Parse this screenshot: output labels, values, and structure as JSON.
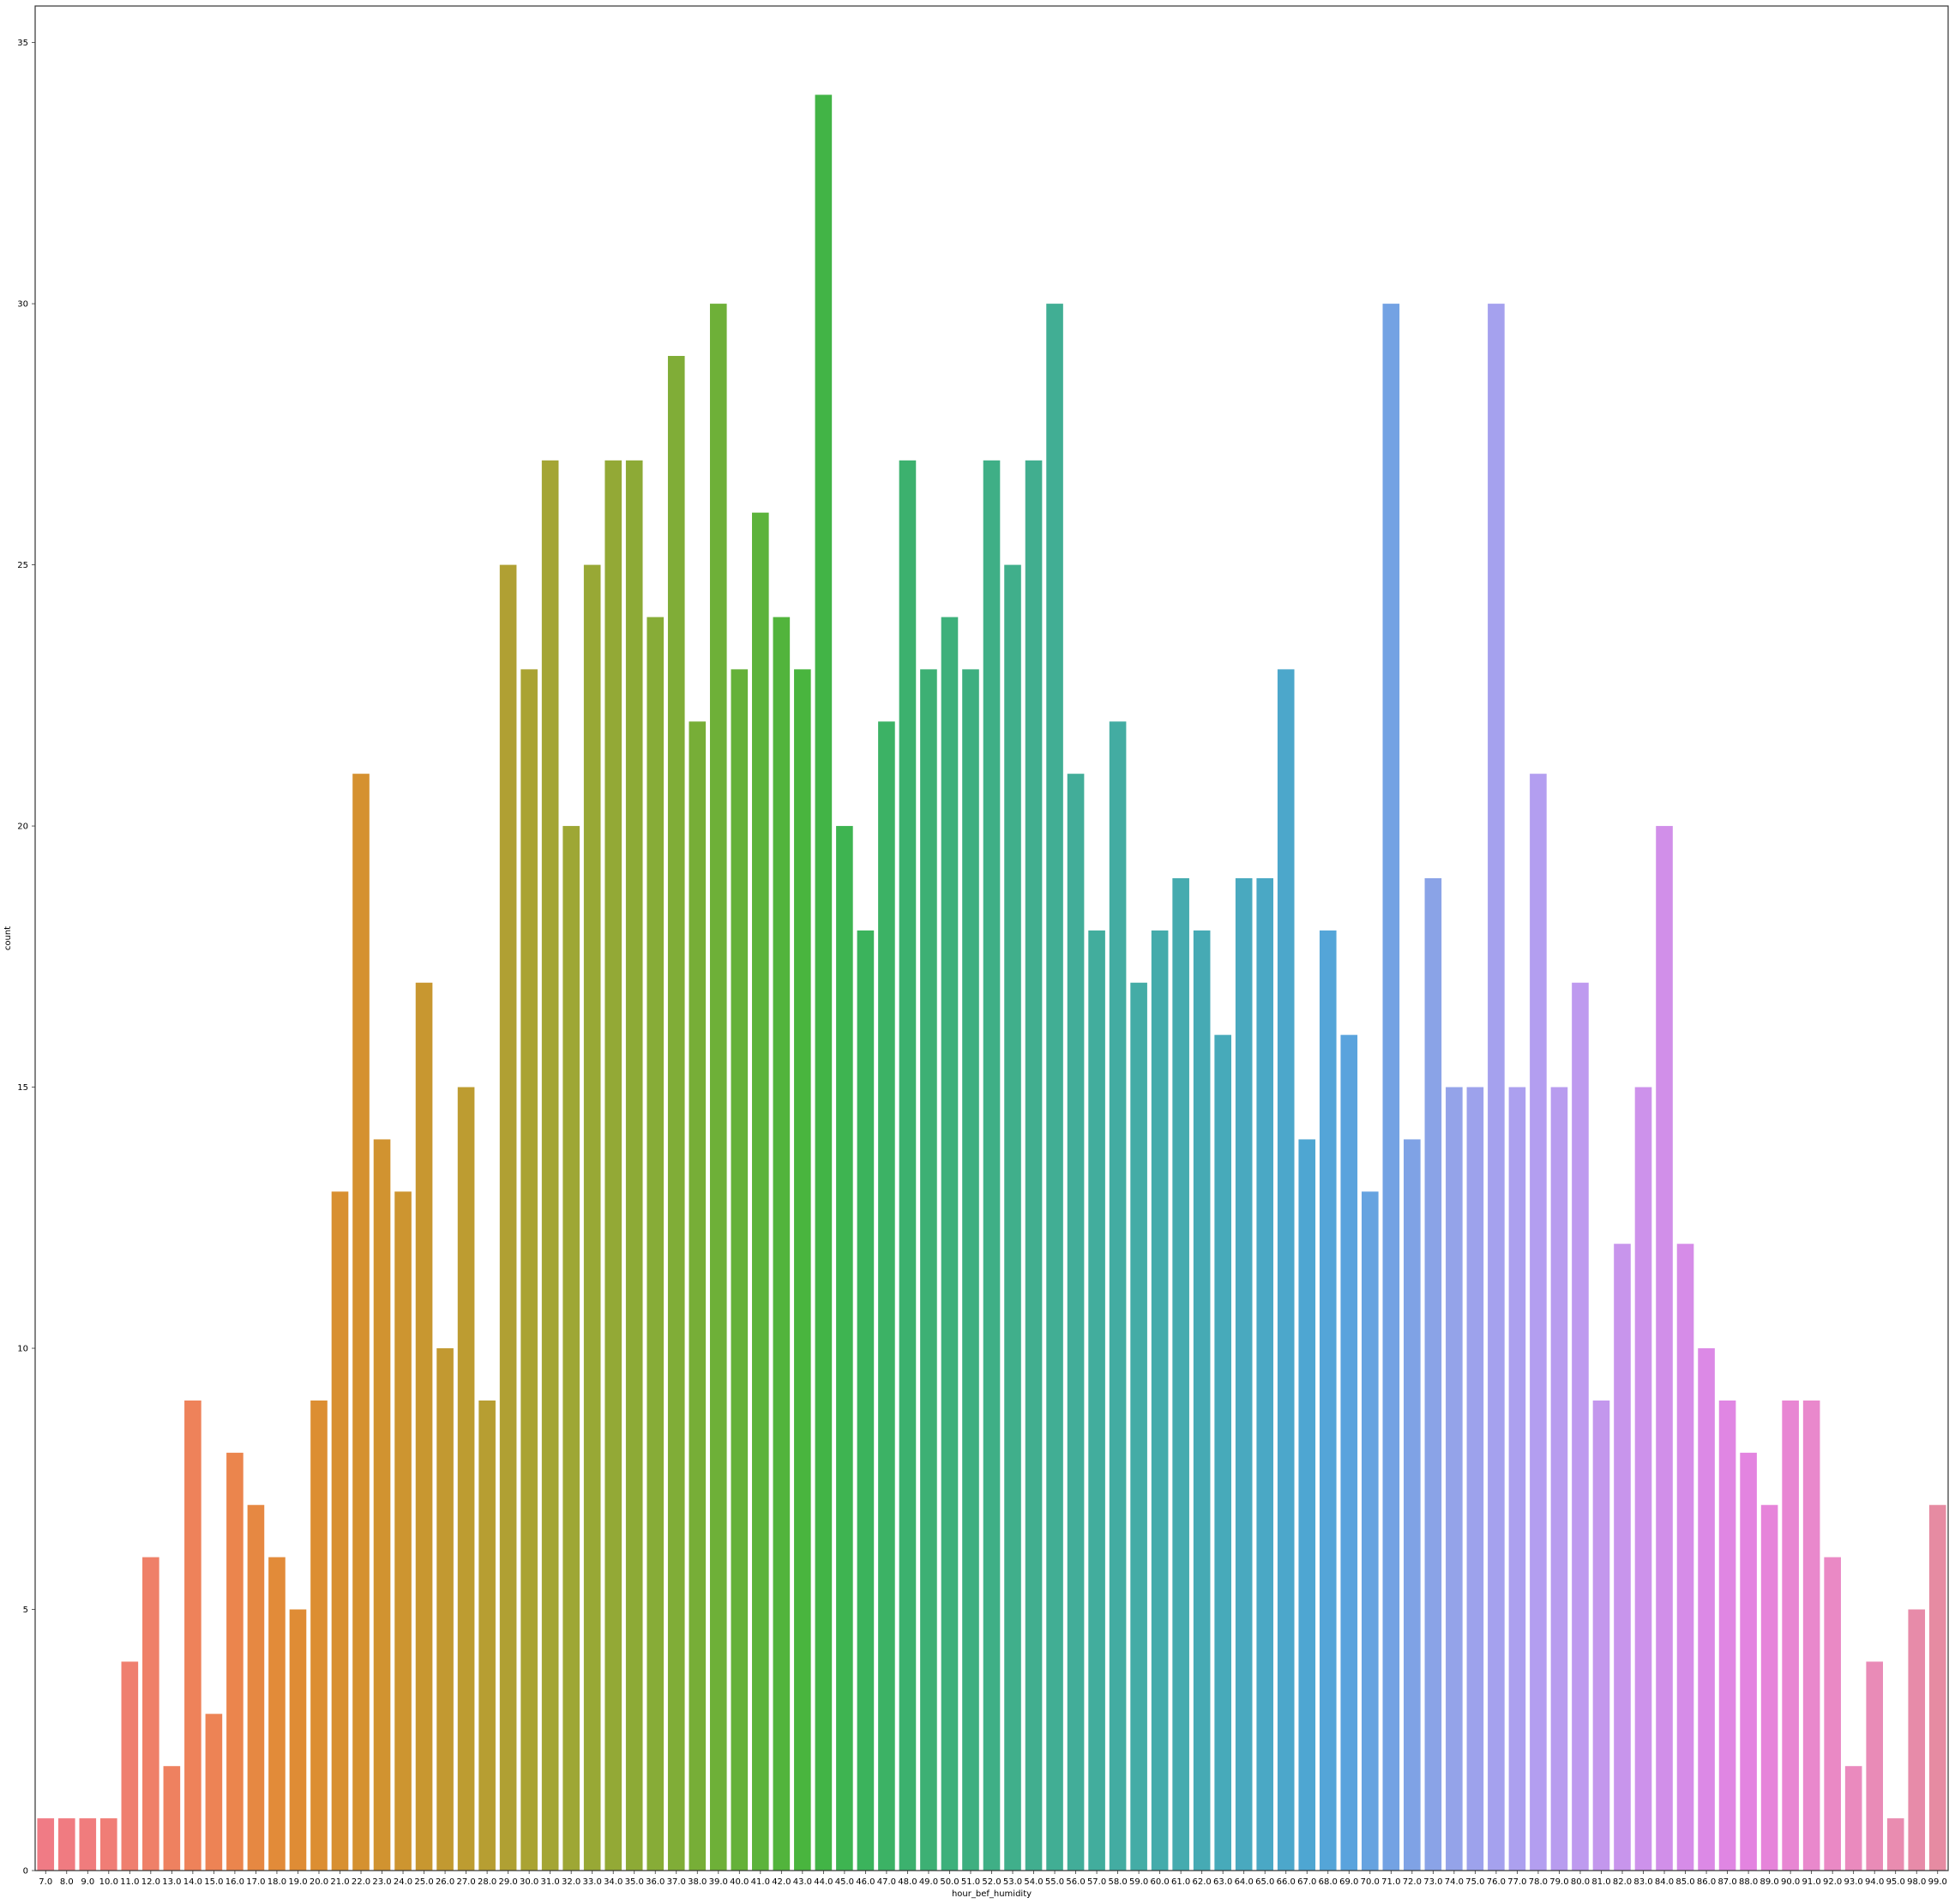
{
  "chart_data": {
    "type": "bar",
    "title": "",
    "xlabel": "hour_bef_humidity",
    "ylabel": "count",
    "ylim": [
      0,
      35.7
    ],
    "yticks": [
      0,
      5,
      10,
      15,
      20,
      25,
      30,
      35
    ],
    "grid": false,
    "legend": "none",
    "categories": [
      "7.0",
      "8.0",
      "9.0",
      "10.0",
      "11.0",
      "12.0",
      "13.0",
      "14.0",
      "15.0",
      "16.0",
      "17.0",
      "18.0",
      "19.0",
      "20.0",
      "21.0",
      "22.0",
      "23.0",
      "24.0",
      "25.0",
      "26.0",
      "27.0",
      "28.0",
      "29.0",
      "30.0",
      "31.0",
      "32.0",
      "33.0",
      "34.0",
      "35.0",
      "36.0",
      "37.0",
      "38.0",
      "39.0",
      "40.0",
      "41.0",
      "42.0",
      "43.0",
      "44.0",
      "45.0",
      "46.0",
      "47.0",
      "48.0",
      "49.0",
      "50.0",
      "51.0",
      "52.0",
      "53.0",
      "54.0",
      "55.0",
      "56.0",
      "57.0",
      "58.0",
      "59.0",
      "60.0",
      "61.0",
      "62.0",
      "63.0",
      "64.0",
      "65.0",
      "66.0",
      "67.0",
      "68.0",
      "69.0",
      "70.0",
      "71.0",
      "72.0",
      "73.0",
      "74.0",
      "75.0",
      "76.0",
      "77.0",
      "78.0",
      "79.0",
      "80.0",
      "81.0",
      "82.0",
      "83.0",
      "84.0",
      "85.0",
      "86.0",
      "87.0",
      "88.0",
      "89.0",
      "90.0",
      "91.0",
      "92.0",
      "93.0",
      "94.0",
      "95.0",
      "98.0",
      "99.0"
    ],
    "values": [
      1,
      1,
      1,
      1,
      4,
      6,
      2,
      9,
      3,
      8,
      7,
      6,
      5,
      9,
      13,
      21,
      14,
      13,
      17,
      10,
      15,
      9,
      25,
      23,
      27,
      20,
      25,
      27,
      27,
      24,
      29,
      22,
      30,
      23,
      26,
      24,
      23,
      34,
      20,
      18,
      22,
      27,
      23,
      24,
      23,
      27,
      25,
      27,
      30,
      21,
      18,
      22,
      17,
      18,
      19,
      18,
      16,
      19,
      19,
      23,
      14,
      18,
      16,
      13,
      30,
      14,
      19,
      15,
      15,
      30,
      15,
      21,
      15,
      17,
      9,
      12,
      15,
      20,
      12,
      10,
      9,
      8,
      7,
      9,
      9,
      6,
      2,
      4,
      1,
      5,
      7
    ],
    "colors": [
      "#f07b85",
      "#f07c7c",
      "#ef7f6d",
      "#ee815d",
      "#ed8452",
      "#e38a3a",
      "#dc8e32",
      "#d59130",
      "#cc9530",
      "#c19a31",
      "#b49f32",
      "#a6a434",
      "#9aa835",
      "#8eaa36",
      "#80ad37",
      "#6db038",
      "#59b33b",
      "#45b53f",
      "#3bb358",
      "#3cb16c",
      "#3db07a",
      "#3faf86",
      "#41ae90",
      "#42ad9a",
      "#43aca4",
      "#45abad",
      "#47aab8",
      "#4aa8c4",
      "#4ea6d2",
      "#5ba3de",
      "#77a2e4",
      "#8fa3e8",
      "#a2a2ed",
      "#b19ff0",
      "#bd9aef",
      "#c895ec",
      "#d28fe9",
      "#dd88e6",
      "#e583de",
      "#e987cf",
      "#ea8ac0",
      "#e98cb1",
      "#e68ba2"
    ]
  }
}
